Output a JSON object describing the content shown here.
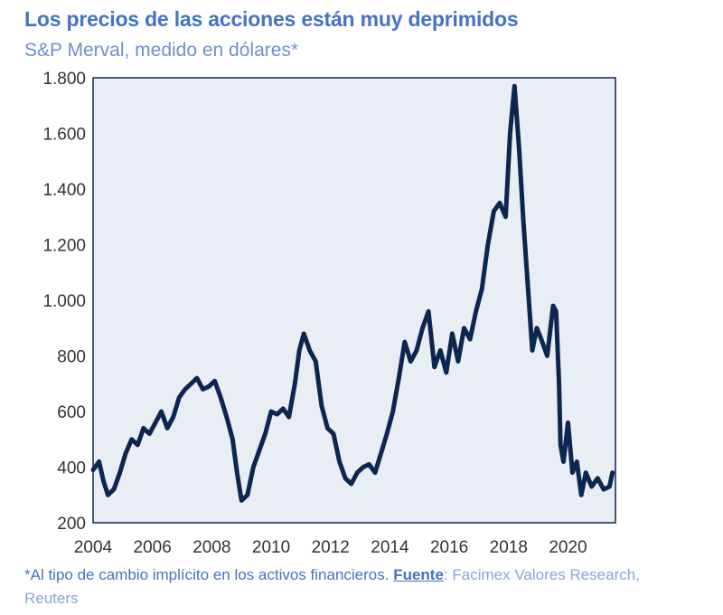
{
  "header": {
    "title": "Los precios de las acciones están muy deprimidos",
    "subtitle": "S&P Merval, medido en dólares*"
  },
  "footnote": {
    "note": "*Al tipo de cambio implícito en los activos financieros.",
    "source_label": "Fuente",
    "source_text": ": Facimex Valores Research, Reuters"
  },
  "colors": {
    "line": "#0d2650",
    "plot_background": "#e9edf4",
    "frame": "#0d2650",
    "title": "#4472c4"
  },
  "chart_data": {
    "type": "line",
    "title": "Los precios de las acciones están muy deprimidos",
    "subtitle": "S&P Merval, medido en dólares*",
    "xlabel": "",
    "ylabel": "",
    "xlim": [
      2004,
      2021.6
    ],
    "ylim": [
      200,
      1800
    ],
    "xticks": [
      2004,
      2006,
      2008,
      2010,
      2012,
      2014,
      2016,
      2018,
      2020
    ],
    "yticks": [
      200,
      400,
      600,
      800,
      1000,
      1200,
      1400,
      1600,
      1800
    ],
    "ytick_labels": [
      "200",
      "400",
      "600",
      "800",
      "1.000",
      "1.200",
      "1.400",
      "1.600",
      "1.800"
    ],
    "grid": false,
    "series": [
      {
        "name": "S&P Merval (USD)",
        "x": [
          2004.0,
          2004.2,
          2004.35,
          2004.5,
          2004.7,
          2004.9,
          2005.1,
          2005.3,
          2005.5,
          2005.7,
          2005.9,
          2006.1,
          2006.3,
          2006.5,
          2006.7,
          2006.9,
          2007.1,
          2007.3,
          2007.5,
          2007.7,
          2007.9,
          2008.1,
          2008.3,
          2008.5,
          2008.7,
          2008.85,
          2009.0,
          2009.2,
          2009.4,
          2009.6,
          2009.8,
          2010.0,
          2010.2,
          2010.4,
          2010.6,
          2010.8,
          2010.95,
          2011.1,
          2011.3,
          2011.5,
          2011.7,
          2011.9,
          2012.1,
          2012.3,
          2012.5,
          2012.7,
          2012.9,
          2013.1,
          2013.3,
          2013.5,
          2013.7,
          2013.9,
          2014.1,
          2014.3,
          2014.5,
          2014.7,
          2014.9,
          2015.1,
          2015.3,
          2015.5,
          2015.7,
          2015.9,
          2016.1,
          2016.3,
          2016.5,
          2016.7,
          2016.9,
          2017.1,
          2017.3,
          2017.5,
          2017.7,
          2017.9,
          2018.05,
          2018.2,
          2018.35,
          2018.5,
          2018.65,
          2018.8,
          2018.95,
          2019.1,
          2019.3,
          2019.5,
          2019.6,
          2019.7,
          2019.75,
          2019.85,
          2020.0,
          2020.15,
          2020.3,
          2020.45,
          2020.6,
          2020.8,
          2021.0,
          2021.2,
          2021.4,
          2021.5
        ],
        "values": [
          390,
          420,
          350,
          300,
          320,
          380,
          450,
          500,
          480,
          540,
          520,
          560,
          600,
          540,
          580,
          650,
          680,
          700,
          720,
          680,
          690,
          710,
          650,
          580,
          500,
          380,
          280,
          300,
          400,
          460,
          520,
          600,
          590,
          610,
          580,
          700,
          820,
          880,
          820,
          780,
          620,
          540,
          520,
          420,
          360,
          340,
          380,
          400,
          410,
          380,
          450,
          520,
          600,
          720,
          850,
          780,
          820,
          900,
          960,
          760,
          820,
          740,
          880,
          780,
          900,
          860,
          960,
          1040,
          1200,
          1320,
          1350,
          1300,
          1600,
          1770,
          1550,
          1280,
          1050,
          820,
          900,
          860,
          800,
          980,
          960,
          700,
          480,
          420,
          560,
          380,
          420,
          300,
          380,
          330,
          360,
          320,
          330,
          380
        ]
      }
    ]
  }
}
